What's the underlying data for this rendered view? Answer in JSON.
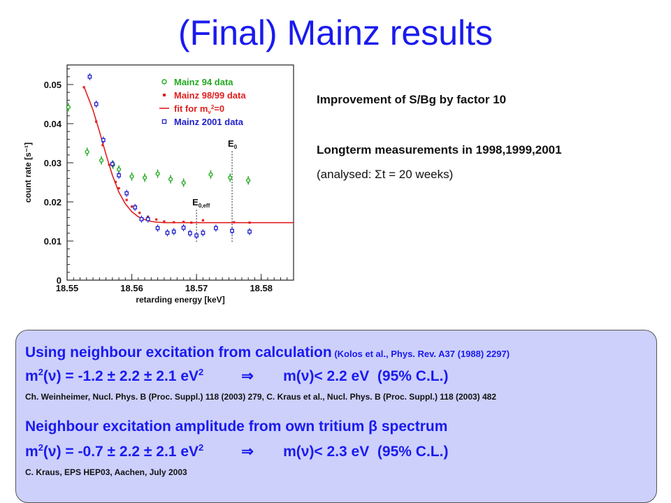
{
  "title": "(Final) Mainz results",
  "info": {
    "line1": "Improvement of S/Bg by factor 10",
    "line2_bold": "Longterm measurements in",
    "line2_years": " 1998,1999,2001",
    "line3_pre": "(analysed: ",
    "line3_sigma": "Σ",
    "line3_post": "t = 20 weeks)"
  },
  "box": {
    "l1_main": "Using neighbour excitation from calculation",
    "l1_ref": " (Kolos et al., Phys. Rev. A37 (1988) 2297)",
    "l2_left": "m",
    "l2_sup": "2",
    "l2_mid": "(ν) = -1.2 ± 2.2 ± 2.1 eV",
    "l2_sup2": "2",
    "arrow": "⇒",
    "l2_right": "m(ν)< 2.2 eV",
    "l2_cl": "(95% C.L.)",
    "l3": "Ch. Weinheimer, Nucl. Phys. B (Proc. Suppl.) 118 (2003) 279, C. Kraus et al.,  Nucl. Phys. B (Proc. Suppl.) 118 (2003) 482",
    "l4": "Neighbour excitation amplitude from own tritium β spectrum",
    "l5_left": "m",
    "l5_sup": "2",
    "l5_mid": "(ν) = -0.7 ± 2.2 ± 2.1 eV",
    "l5_sup2": "2",
    "l5_right": "m(ν)< 2.3 eV",
    "l5_cl": "(95% C.L.)",
    "l6": "C. Kraus, EPS HEP03, Aachen, July 2003"
  },
  "chart_data": {
    "type": "scatter",
    "xlabel": "retarding energy  [keV]",
    "ylabel": "count rate  [s⁻¹]",
    "xlim": [
      18.55,
      18.585
    ],
    "ylim": [
      0,
      0.055
    ],
    "x_ticks": [
      18.55,
      18.56,
      18.57,
      18.58
    ],
    "x_tick_labels": [
      "18.55",
      "18.56",
      "18.57",
      "18.58"
    ],
    "y_ticks": [
      0,
      0.01,
      0.02,
      0.03,
      0.04,
      0.05
    ],
    "y_tick_labels": [
      "0",
      "0.01",
      "0.02",
      "0.03",
      "0.04",
      "0.05"
    ],
    "legend_position": "top-right",
    "annotations": [
      {
        "text": "E",
        "sub": "0",
        "x": 18.5755
      },
      {
        "text": "E",
        "sub": "0,eff",
        "x": 18.57
      }
    ],
    "series": [
      {
        "name": "Mainz 94 data",
        "marker": "circle-open",
        "color": "#22aa22",
        "points": [
          [
            18.5502,
            0.0442
          ],
          [
            18.5531,
            0.0328
          ],
          [
            18.5553,
            0.0306
          ],
          [
            18.5571,
            0.0295
          ],
          [
            18.558,
            0.0283
          ],
          [
            18.56,
            0.0265
          ],
          [
            18.562,
            0.0262
          ],
          [
            18.564,
            0.0272
          ],
          [
            18.566,
            0.0258
          ],
          [
            18.568,
            0.0249
          ],
          [
            18.5722,
            0.027
          ],
          [
            18.5752,
            0.0262
          ],
          [
            18.578,
            0.0255
          ]
        ]
      },
      {
        "name": "Mainz 98/99 data",
        "marker": "square-filled",
        "color": "#e02020",
        "points": [
          [
            18.5526,
            0.0493
          ],
          [
            18.5545,
            0.0405
          ],
          [
            18.5555,
            0.0345
          ],
          [
            18.5565,
            0.0295
          ],
          [
            18.5575,
            0.0251
          ],
          [
            18.558,
            0.0235
          ],
          [
            18.5592,
            0.0205
          ],
          [
            18.56,
            0.0188
          ],
          [
            18.5612,
            0.0172
          ],
          [
            18.5625,
            0.0162
          ],
          [
            18.5638,
            0.0155
          ],
          [
            18.565,
            0.015
          ],
          [
            18.5665,
            0.0148
          ],
          [
            18.568,
            0.0149
          ],
          [
            18.5692,
            0.0147
          ],
          [
            18.571,
            0.0153
          ],
          [
            18.5758,
            0.0148
          ],
          [
            18.5782,
            0.0147
          ]
        ]
      },
      {
        "name": "fit for m_ν²=0",
        "marker": "line",
        "color": "#e02020",
        "points": [
          [
            18.5526,
            0.0495
          ],
          [
            18.554,
            0.0435
          ],
          [
            18.555,
            0.038
          ],
          [
            18.556,
            0.0322
          ],
          [
            18.557,
            0.0268
          ],
          [
            18.558,
            0.0225
          ],
          [
            18.559,
            0.0195
          ],
          [
            18.56,
            0.0175
          ],
          [
            18.561,
            0.0162
          ],
          [
            18.562,
            0.0155
          ],
          [
            18.563,
            0.015
          ],
          [
            18.564,
            0.0148
          ],
          [
            18.565,
            0.0147
          ],
          [
            18.57,
            0.0147
          ],
          [
            18.585,
            0.0147
          ]
        ]
      },
      {
        "name": "Mainz 2001 data",
        "marker": "square-open",
        "color": "#2020cc",
        "points": [
          [
            18.5535,
            0.052
          ],
          [
            18.5545,
            0.045
          ],
          [
            18.5556,
            0.0358
          ],
          [
            18.557,
            0.0297
          ],
          [
            18.558,
            0.0268
          ],
          [
            18.5592,
            0.0222
          ],
          [
            18.5605,
            0.0186
          ],
          [
            18.5615,
            0.0156
          ],
          [
            18.5625,
            0.0156
          ],
          [
            18.564,
            0.0133
          ],
          [
            18.5655,
            0.0121
          ],
          [
            18.5665,
            0.0124
          ],
          [
            18.568,
            0.0134
          ],
          [
            18.569,
            0.012
          ],
          [
            18.57,
            0.0114
          ],
          [
            18.571,
            0.0121
          ],
          [
            18.573,
            0.0133
          ],
          [
            18.5755,
            0.0126
          ],
          [
            18.5782,
            0.0124
          ]
        ]
      }
    ]
  }
}
